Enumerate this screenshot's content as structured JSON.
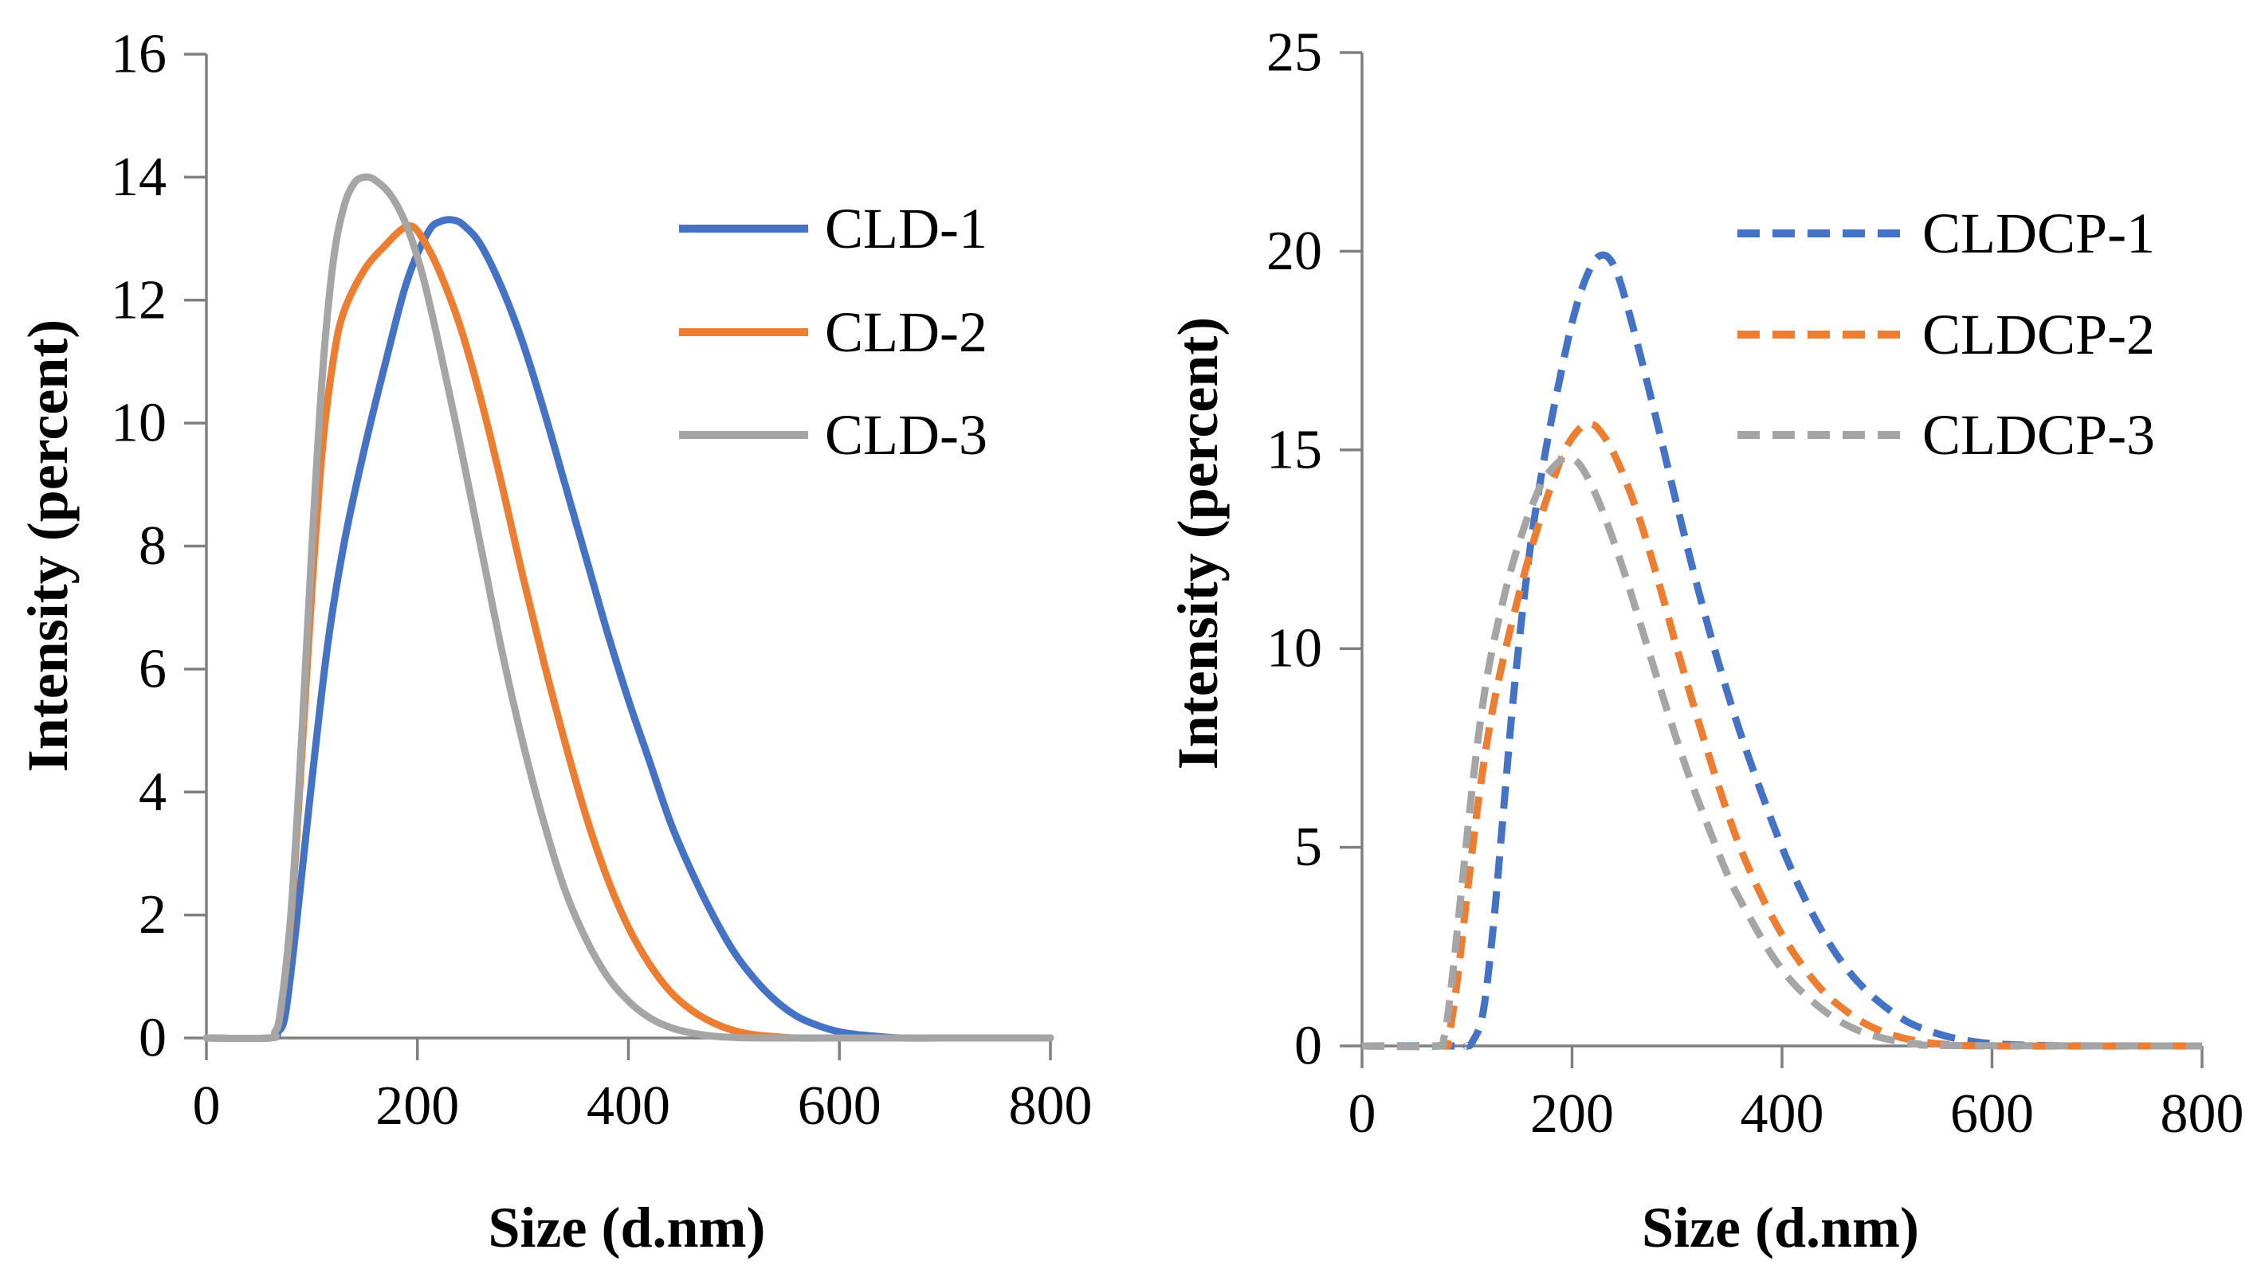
{
  "chart_data": [
    {
      "type": "line",
      "title": "",
      "xlabel": "Size (d.nm)",
      "ylabel": "Intensity (percent)",
      "xlim": [
        0,
        800
      ],
      "ylim": [
        0,
        16
      ],
      "xticks": [
        0,
        200,
        400,
        600,
        800
      ],
      "yticks": [
        0,
        2,
        4,
        6,
        8,
        10,
        12,
        14,
        16
      ],
      "grid": false,
      "legend_position": "top-right",
      "series": [
        {
          "name": "CLD-1",
          "color": "#4472C4",
          "dash": "solid",
          "x": [
            0,
            60,
            68,
            75,
            85,
            100,
            115,
            130,
            150,
            170,
            190,
            210,
            222,
            235,
            245,
            260,
            280,
            300,
            320,
            340,
            360,
            380,
            400,
            420,
            440,
            460,
            480,
            500,
            520,
            540,
            560,
            580,
            600,
            620,
            640,
            660,
            700,
            800
          ],
          "y": [
            0,
            0,
            0.1,
            0.4,
            1.8,
            4.2,
            6.4,
            8.0,
            9.6,
            11.0,
            12.3,
            13.1,
            13.28,
            13.3,
            13.2,
            12.9,
            12.2,
            11.3,
            10.2,
            9.0,
            7.8,
            6.6,
            5.5,
            4.5,
            3.5,
            2.7,
            2.0,
            1.4,
            0.95,
            0.6,
            0.35,
            0.2,
            0.1,
            0.05,
            0.02,
            0.0,
            0,
            0
          ]
        },
        {
          "name": "CLD-2",
          "color": "#ED7D31",
          "dash": "solid",
          "x": [
            0,
            60,
            65,
            70,
            80,
            90,
            100,
            110,
            120,
            130,
            150,
            170,
            185,
            195,
            205,
            220,
            240,
            260,
            280,
            300,
            320,
            340,
            360,
            380,
            400,
            420,
            440,
            460,
            480,
            500,
            520,
            540,
            560,
            600,
            800
          ],
          "y": [
            0,
            0,
            0.1,
            0.4,
            1.9,
            4.5,
            7.3,
            9.6,
            11.0,
            11.8,
            12.5,
            12.9,
            13.15,
            13.2,
            13.0,
            12.5,
            11.6,
            10.4,
            9.0,
            7.5,
            6.1,
            4.8,
            3.6,
            2.6,
            1.8,
            1.2,
            0.75,
            0.45,
            0.25,
            0.12,
            0.05,
            0.02,
            0,
            0,
            0
          ]
        },
        {
          "name": "CLD-3",
          "color": "#A5A5A5",
          "dash": "solid",
          "x": [
            0,
            60,
            65,
            70,
            80,
            90,
            100,
            110,
            120,
            130,
            140,
            150,
            160,
            175,
            190,
            205,
            220,
            240,
            260,
            280,
            300,
            320,
            340,
            360,
            380,
            400,
            420,
            440,
            460,
            480,
            500,
            540,
            800
          ],
          "y": [
            0,
            0,
            0.1,
            0.4,
            2.0,
            4.8,
            8.0,
            10.8,
            12.6,
            13.5,
            13.9,
            14.0,
            13.95,
            13.7,
            13.2,
            12.4,
            11.3,
            9.7,
            8.0,
            6.3,
            4.8,
            3.5,
            2.4,
            1.6,
            1.0,
            0.6,
            0.33,
            0.17,
            0.08,
            0.03,
            0.01,
            0,
            0
          ]
        }
      ]
    },
    {
      "type": "line",
      "title": "",
      "xlabel": "Size (d.nm)",
      "ylabel": "Intensity (percent)",
      "xlim": [
        0,
        800
      ],
      "ylim": [
        0,
        25
      ],
      "xticks": [
        0,
        200,
        400,
        600,
        800
      ],
      "yticks": [
        0,
        5,
        10,
        15,
        20,
        25
      ],
      "grid": false,
      "legend_position": "top-right",
      "series": [
        {
          "name": "CLDCP-1",
          "color": "#4472C4",
          "dash": "dashed",
          "x": [
            0,
            90,
            100,
            105,
            115,
            125,
            135,
            145,
            160,
            175,
            190,
            200,
            210,
            220,
            228,
            236,
            245,
            260,
            280,
            300,
            320,
            340,
            360,
            380,
            400,
            420,
            440,
            460,
            480,
            500,
            520,
            540,
            560,
            580,
            600,
            620,
            650,
            700,
            800
          ],
          "y": [
            0,
            0,
            0,
            0.1,
            0.8,
            3.0,
            6.0,
            9.0,
            12.5,
            15.0,
            17.0,
            18.2,
            19.1,
            19.7,
            19.9,
            19.8,
            19.3,
            17.9,
            15.8,
            13.6,
            11.5,
            9.6,
            7.9,
            6.4,
            5.0,
            3.8,
            2.8,
            2.0,
            1.4,
            0.95,
            0.6,
            0.38,
            0.22,
            0.12,
            0.06,
            0.03,
            0.01,
            0,
            0
          ]
        },
        {
          "name": "CLDCP-2",
          "color": "#ED7D31",
          "dash": "dashed",
          "x": [
            0,
            75,
            82,
            90,
            100,
            110,
            120,
            130,
            145,
            160,
            175,
            190,
            200,
            210,
            218,
            226,
            240,
            260,
            280,
            300,
            320,
            340,
            360,
            380,
            400,
            420,
            440,
            460,
            480,
            500,
            520,
            540,
            560,
            600,
            800
          ],
          "y": [
            0,
            0,
            0.2,
            1.5,
            3.8,
            6.0,
            7.8,
            9.2,
            10.9,
            12.4,
            13.7,
            14.8,
            15.3,
            15.6,
            15.65,
            15.5,
            14.9,
            13.6,
            11.9,
            10.0,
            8.2,
            6.5,
            5.0,
            3.8,
            2.8,
            2.0,
            1.35,
            0.9,
            0.55,
            0.32,
            0.17,
            0.08,
            0.03,
            0,
            0
          ]
        },
        {
          "name": "CLDCP-3",
          "color": "#A5A5A5",
          "dash": "dashed",
          "x": [
            0,
            70,
            78,
            85,
            95,
            105,
            115,
            125,
            140,
            155,
            170,
            180,
            190,
            197,
            205,
            215,
            230,
            250,
            270,
            290,
            310,
            330,
            350,
            370,
            390,
            410,
            430,
            450,
            470,
            490,
            510,
            530,
            560,
            800
          ],
          "y": [
            0,
            0,
            0.2,
            1.5,
            4.0,
            6.5,
            8.6,
            10.1,
            11.8,
            13.1,
            14.1,
            14.5,
            14.75,
            14.8,
            14.7,
            14.3,
            13.4,
            11.9,
            10.2,
            8.5,
            6.9,
            5.5,
            4.2,
            3.2,
            2.3,
            1.6,
            1.1,
            0.7,
            0.42,
            0.24,
            0.12,
            0.05,
            0.01,
            0
          ]
        }
      ]
    }
  ]
}
